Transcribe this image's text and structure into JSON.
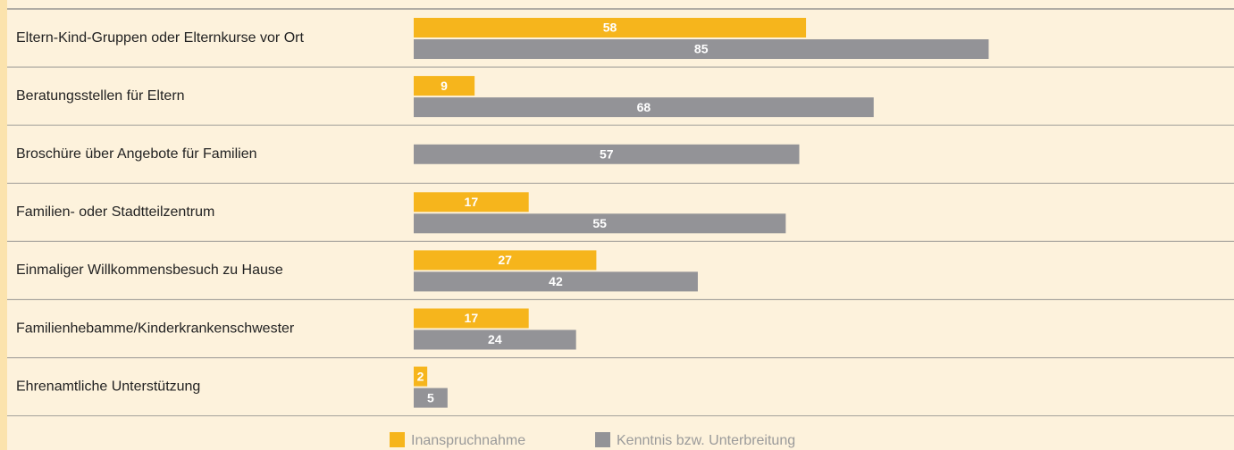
{
  "chart_data": {
    "type": "bar",
    "orientation": "horizontal",
    "categories": [
      "Eltern-Kind-Gruppen oder Elternkurse vor Ort",
      "Beratungsstellen für Eltern",
      "Broschüre über Angebote für Familien",
      "Familien- oder Stadtteilzentrum",
      "Einmaliger Willkommensbesuch zu Hause",
      "Familienhebamme/Kinderkrankenschwester",
      "Ehrenamtliche Unterstützung"
    ],
    "series": [
      {
        "name": "Inanspruchnahme",
        "color": "#f6b51c",
        "values": [
          58,
          9,
          null,
          17,
          27,
          17,
          2
        ]
      },
      {
        "name": "Kenntnis bzw. Unterbreitung",
        "color": "#939397",
        "values": [
          85,
          68,
          57,
          55,
          42,
          24,
          5
        ]
      }
    ],
    "xlim": [
      0,
      100
    ]
  }
}
